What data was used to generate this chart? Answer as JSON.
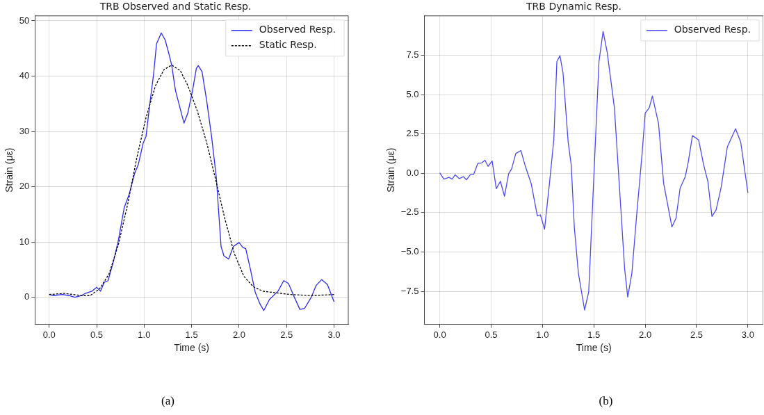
{
  "chart_data": [
    {
      "type": "line",
      "title": "TRB Observed and Static Resp.",
      "xlabel": "Time (s)",
      "ylabel": "Strain (με)",
      "xlim": [
        -0.15,
        3.15
      ],
      "xticks": [
        {
          "value": 0,
          "label": "0.0"
        },
        {
          "value": 0.5,
          "label": "0.5"
        },
        {
          "value": 1,
          "label": "1.0"
        },
        {
          "value": 1.5,
          "label": "1.5"
        },
        {
          "value": 2,
          "label": "2.0"
        },
        {
          "value": 2.5,
          "label": "2.5"
        },
        {
          "value": 3,
          "label": "3.0"
        }
      ],
      "ylim": [
        -4.9,
        50.9
      ],
      "yticks": [
        0,
        10,
        20,
        30,
        40,
        50
      ],
      "grid": true,
      "legend": "top right",
      "marker": "none",
      "annotations": [
        "(a)"
      ],
      "series": [
        {
          "name": "Observed Resp.",
          "color": "#2a2af5",
          "line_style": "solid",
          "x": [
            0,
            0.04,
            0.14,
            0.21,
            0.27,
            0.34,
            0.38,
            0.45,
            0.5,
            0.54,
            0.58,
            0.62,
            0.68,
            0.73,
            0.79,
            0.84,
            0.9,
            0.94,
            0.99,
            1.02,
            1.06,
            1.1,
            1.13,
            1.18,
            1.22,
            1.26,
            1.29,
            1.33,
            1.38,
            1.42,
            1.46,
            1.51,
            1.55,
            1.57,
            1.61,
            1.66,
            1.71,
            1.76,
            1.81,
            1.84,
            1.89,
            1.94,
            2.0,
            2.04,
            2.07,
            2.12,
            2.17,
            2.22,
            2.26,
            2.32,
            2.41,
            2.47,
            2.52,
            2.57,
            2.64,
            2.69,
            2.76,
            2.81,
            2.87,
            2.93,
            3.0
          ],
          "values": [
            0.5,
            0.3,
            0.5,
            0.3,
            0.0,
            0.3,
            0.7,
            1.1,
            1.8,
            1.1,
            2.7,
            3.0,
            6.7,
            10.4,
            16.2,
            18.5,
            22.4,
            24.1,
            27.9,
            29.1,
            35.0,
            40.4,
            45.8,
            47.8,
            46.6,
            44.1,
            42.0,
            37.4,
            34.1,
            31.5,
            33.3,
            37.4,
            41.4,
            41.9,
            40.8,
            35.4,
            29.1,
            21.7,
            9.2,
            7.5,
            6.9,
            9.2,
            9.9,
            9.0,
            8.8,
            5.0,
            0.9,
            -1.2,
            -2.4,
            -0.4,
            1.1,
            3.0,
            2.5,
            0.5,
            -2.2,
            -2.0,
            0.0,
            2.1,
            3.2,
            2.3,
            -0.8
          ]
        },
        {
          "name": "Static Resp.",
          "color": "#000000",
          "line_style": "dashed",
          "x": [
            0,
            0.16,
            0.34,
            0.43,
            0.53,
            0.63,
            0.73,
            0.83,
            0.92,
            1.02,
            1.12,
            1.21,
            1.29,
            1.38,
            1.46,
            1.56,
            1.66,
            1.76,
            1.85,
            1.95,
            2.05,
            2.15,
            2.25,
            2.39,
            2.54,
            2.76,
            3.0
          ],
          "values": [
            0.5,
            0.7,
            0.3,
            0.3,
            1.5,
            4.2,
            9.6,
            17.1,
            25.0,
            32.5,
            38.3,
            41.2,
            42.0,
            41.0,
            38.3,
            33.7,
            27.9,
            20.8,
            14.2,
            7.9,
            3.8,
            1.9,
            1.1,
            0.8,
            0.5,
            0.3,
            0.5
          ]
        }
      ]
    },
    {
      "type": "line",
      "title": "TRB Dynamic Resp.",
      "xlabel": "Time (s)",
      "ylabel": "Strain (με)",
      "xlim": [
        -0.15,
        3.15
      ],
      "xticks": [
        {
          "value": 0,
          "label": "0.0"
        },
        {
          "value": 0.5,
          "label": "0.5"
        },
        {
          "value": 1,
          "label": "1.0"
        },
        {
          "value": 1.5,
          "label": "1.5"
        },
        {
          "value": 2,
          "label": "2.0"
        },
        {
          "value": 2.5,
          "label": "2.5"
        },
        {
          "value": 3,
          "label": "3.0"
        }
      ],
      "ylim": [
        -9.6,
        10.0
      ],
      "yticks": [
        {
          "value": -7.5,
          "label": "−7.5"
        },
        {
          "value": -5,
          "label": "−5.0"
        },
        {
          "value": -2.5,
          "label": "−2.5"
        },
        {
          "value": 0,
          "label": "0.0"
        },
        {
          "value": 2.5,
          "label": "2.5"
        },
        {
          "value": 5,
          "label": "5.0"
        },
        {
          "value": 7.5,
          "label": "7.5"
        }
      ],
      "grid": true,
      "legend": "top right",
      "marker": "none",
      "annotations": [
        "(b)"
      ],
      "series": [
        {
          "name": "Observed Resp.",
          "color": "#4a4af5",
          "line_style": "solid",
          "x": [
            0,
            0.04,
            0.09,
            0.12,
            0.15,
            0.19,
            0.23,
            0.26,
            0.3,
            0.33,
            0.37,
            0.41,
            0.44,
            0.47,
            0.51,
            0.55,
            0.59,
            0.63,
            0.67,
            0.7,
            0.74,
            0.79,
            0.83,
            0.89,
            0.95,
            0.98,
            1.02,
            1.07,
            1.11,
            1.14,
            1.17,
            1.2,
            1.25,
            1.28,
            1.31,
            1.35,
            1.41,
            1.45,
            1.5,
            1.55,
            1.59,
            1.63,
            1.7,
            1.75,
            1.8,
            1.83,
            1.87,
            1.92,
            1.97,
            2.0,
            2.04,
            2.07,
            2.13,
            2.18,
            2.21,
            2.26,
            2.3,
            2.34,
            2.39,
            2.42,
            2.46,
            2.52,
            2.57,
            2.61,
            2.65,
            2.69,
            2.74,
            2.8,
            2.88,
            2.93,
            3.0
          ],
          "values": [
            0.03,
            -0.37,
            -0.26,
            -0.37,
            -0.1,
            -0.34,
            -0.22,
            -0.41,
            -0.07,
            -0.07,
            0.62,
            0.66,
            0.83,
            0.44,
            0.78,
            -0.98,
            -0.51,
            -1.46,
            -0.04,
            0.29,
            1.25,
            1.44,
            0.51,
            -0.66,
            -2.71,
            -2.64,
            -3.56,
            -0.51,
            2.12,
            7.1,
            7.47,
            6.37,
            1.98,
            0.51,
            -3.44,
            -6.37,
            -8.69,
            -7.54,
            -0.22,
            7.1,
            9.01,
            7.69,
            4.17,
            -0.95,
            -6.08,
            -7.87,
            -6.37,
            -2.42,
            1.25,
            3.81,
            4.17,
            4.91,
            3.15,
            -0.66,
            -1.68,
            -3.41,
            -2.86,
            -0.95,
            -0.22,
            0.73,
            2.39,
            2.12,
            0.51,
            -0.51,
            -2.74,
            -2.34,
            -0.88,
            1.68,
            2.83,
            1.98,
            -1.25
          ]
        }
      ]
    }
  ]
}
